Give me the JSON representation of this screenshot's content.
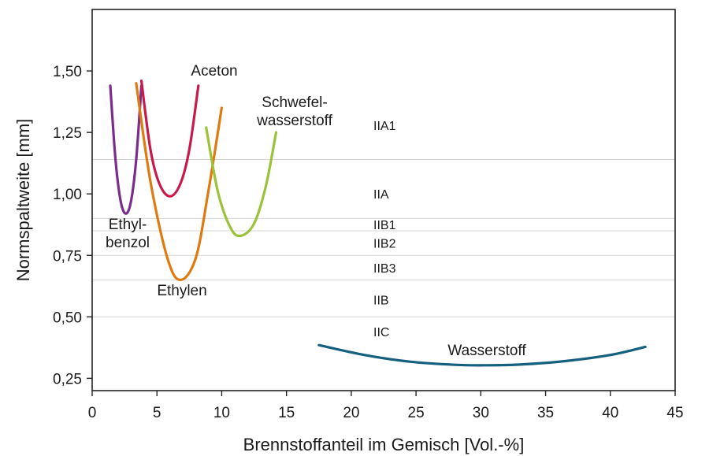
{
  "chart_data": {
    "type": "line",
    "xlabel": "Brennstoffanteil im Gemisch [Vol.-%]",
    "ylabel": "Normspaltweite [mm]",
    "xlim": [
      0,
      45
    ],
    "ylim": [
      0.2,
      1.75
    ],
    "xticks": [
      0,
      5,
      10,
      15,
      20,
      25,
      30,
      35,
      40,
      45
    ],
    "yticks": [
      0.25,
      0.5,
      0.75,
      1.0,
      1.25,
      1.5
    ],
    "ytick_labels": [
      "0,25",
      "0,50",
      "0,75",
      "1,00",
      "1,25",
      "1,50"
    ],
    "grid": false,
    "series": [
      {
        "name": "Ethylbenzol",
        "label_lines": [
          "Ethyl-",
          "benzol"
        ],
        "color": "#7b2d8e",
        "x": [
          1.4,
          1.8,
          2.2,
          2.6,
          3.0,
          3.4,
          3.8
        ],
        "y": [
          1.44,
          1.14,
          0.97,
          0.92,
          0.97,
          1.14,
          1.44
        ]
      },
      {
        "name": "Aceton",
        "label_lines": [
          "Aceton"
        ],
        "color": "#c8194a",
        "x": [
          3.8,
          4.5,
          5.2,
          6.0,
          6.8,
          7.5,
          8.2
        ],
        "y": [
          1.46,
          1.18,
          1.04,
          0.99,
          1.04,
          1.18,
          1.44
        ]
      },
      {
        "name": "Ethylen",
        "label_lines": [
          "Ethylen"
        ],
        "color": "#e07a10",
        "x": [
          3.4,
          4.5,
          5.8,
          6.8,
          8.0,
          9.0,
          10.0
        ],
        "y": [
          1.45,
          1.05,
          0.74,
          0.65,
          0.74,
          1.02,
          1.35
        ]
      },
      {
        "name": "Schwefelwasserstoff",
        "label_lines": [
          "Schwefel-",
          "wasserstoff"
        ],
        "color": "#9cc23a",
        "x": [
          8.8,
          9.7,
          10.7,
          11.5,
          12.5,
          13.4,
          14.2
        ],
        "y": [
          1.27,
          1.01,
          0.86,
          0.83,
          0.88,
          1.03,
          1.25
        ]
      },
      {
        "name": "Wasserstoff",
        "label_lines": [
          "Wasserstoff"
        ],
        "color": "#15607f",
        "x": [
          17.5,
          21.0,
          24.5,
          28.0,
          30.4,
          33.0,
          36.5,
          40.0,
          42.7
        ],
        "y": [
          0.385,
          0.345,
          0.318,
          0.305,
          0.303,
          0.306,
          0.32,
          0.345,
          0.378
        ]
      }
    ],
    "zone_boundaries": [
      1.14,
      0.9,
      0.85,
      0.75,
      0.65,
      0.5
    ],
    "zones": [
      {
        "label": "IIA1",
        "y": 1.28
      },
      {
        "label": "IIA",
        "y": 1.0
      },
      {
        "label": "IIB1",
        "y": 0.875
      },
      {
        "label": "IIB2",
        "y": 0.8
      },
      {
        "label": "IIB3",
        "y": 0.7
      },
      {
        "label": "IIB",
        "y": 0.57
      },
      {
        "label": "IIC",
        "y": 0.44
      }
    ],
    "line_colors": {
      "zone": "#d4d4d4",
      "axis": "#222222"
    }
  }
}
